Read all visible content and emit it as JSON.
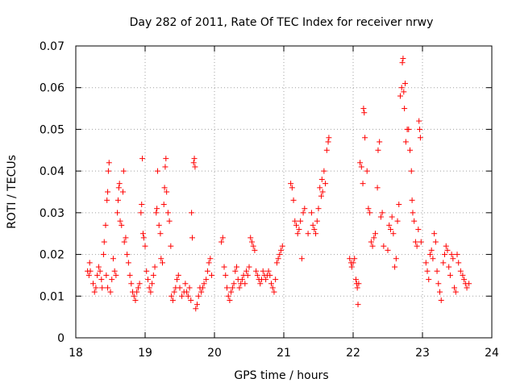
{
  "chart_data": {
    "type": "scatter",
    "title": "Day 282 of 2011, Rate Of TEC Index for receiver nrwy",
    "xlabel": "GPS time / hours",
    "ylabel": "ROTI / TECUs",
    "xlim": [
      18,
      24
    ],
    "ylim": [
      0,
      0.07
    ],
    "xticks": [
      18,
      19,
      20,
      21,
      22,
      23,
      24
    ],
    "xtick_labels": [
      "18",
      "19",
      "20",
      "21",
      "22",
      "23",
      "24"
    ],
    "yticks": [
      0,
      0.01,
      0.02,
      0.03,
      0.04,
      0.05,
      0.06,
      0.07
    ],
    "ytick_labels": [
      "0",
      "0.01",
      "0.02",
      "0.03",
      "0.04",
      "0.05",
      "0.06",
      "0.07"
    ],
    "grid": true,
    "marker": "+",
    "color": "#ff0000",
    "series": [
      {
        "name": "nrwy",
        "points": [
          [
            18.17,
            0.016
          ],
          [
            18.19,
            0.015
          ],
          [
            18.21,
            0.016
          ],
          [
            18.2,
            0.018
          ],
          [
            18.25,
            0.013
          ],
          [
            18.27,
            0.011
          ],
          [
            18.29,
            0.012
          ],
          [
            18.31,
            0.015
          ],
          [
            18.33,
            0.017
          ],
          [
            18.35,
            0.016
          ],
          [
            18.37,
            0.014
          ],
          [
            18.38,
            0.012
          ],
          [
            18.4,
            0.02
          ],
          [
            18.41,
            0.023
          ],
          [
            18.43,
            0.027
          ],
          [
            18.45,
            0.033
          ],
          [
            18.46,
            0.035
          ],
          [
            18.47,
            0.04
          ],
          [
            18.48,
            0.042
          ],
          [
            18.44,
            0.015
          ],
          [
            18.46,
            0.012
          ],
          [
            18.5,
            0.011
          ],
          [
            18.52,
            0.014
          ],
          [
            18.54,
            0.019
          ],
          [
            18.56,
            0.016
          ],
          [
            18.58,
            0.015
          ],
          [
            18.6,
            0.03
          ],
          [
            18.61,
            0.033
          ],
          [
            18.62,
            0.036
          ],
          [
            18.63,
            0.037
          ],
          [
            18.64,
            0.028
          ],
          [
            18.66,
            0.027
          ],
          [
            18.68,
            0.035
          ],
          [
            18.69,
            0.04
          ],
          [
            18.7,
            0.023
          ],
          [
            18.72,
            0.024
          ],
          [
            18.74,
            0.02
          ],
          [
            18.76,
            0.018
          ],
          [
            18.78,
            0.015
          ],
          [
            18.8,
            0.013
          ],
          [
            18.82,
            0.011
          ],
          [
            18.84,
            0.01
          ],
          [
            18.86,
            0.009
          ],
          [
            18.88,
            0.011
          ],
          [
            18.9,
            0.012
          ],
          [
            18.92,
            0.013
          ],
          [
            18.94,
            0.03
          ],
          [
            18.95,
            0.032
          ],
          [
            18.96,
            0.043
          ],
          [
            18.97,
            0.025
          ],
          [
            18.98,
            0.024
          ],
          [
            19.0,
            0.022
          ],
          [
            19.02,
            0.016
          ],
          [
            19.04,
            0.014
          ],
          [
            19.06,
            0.012
          ],
          [
            19.08,
            0.011
          ],
          [
            19.1,
            0.013
          ],
          [
            19.12,
            0.015
          ],
          [
            19.14,
            0.017
          ],
          [
            19.16,
            0.03
          ],
          [
            19.17,
            0.031
          ],
          [
            19.18,
            0.04
          ],
          [
            19.2,
            0.027
          ],
          [
            19.22,
            0.025
          ],
          [
            19.23,
            0.019
          ],
          [
            19.25,
            0.018
          ],
          [
            19.27,
            0.032
          ],
          [
            19.28,
            0.036
          ],
          [
            19.29,
            0.041
          ],
          [
            19.3,
            0.043
          ],
          [
            19.31,
            0.035
          ],
          [
            19.33,
            0.03
          ],
          [
            19.35,
            0.028
          ],
          [
            19.37,
            0.022
          ],
          [
            19.38,
            0.01
          ],
          [
            19.4,
            0.009
          ],
          [
            19.42,
            0.011
          ],
          [
            19.44,
            0.012
          ],
          [
            19.46,
            0.014
          ],
          [
            19.48,
            0.015
          ],
          [
            19.5,
            0.012
          ],
          [
            19.53,
            0.01
          ],
          [
            19.56,
            0.011
          ],
          [
            19.58,
            0.013
          ],
          [
            19.6,
            0.011
          ],
          [
            19.62,
            0.01
          ],
          [
            19.64,
            0.012
          ],
          [
            19.66,
            0.009
          ],
          [
            19.67,
            0.03
          ],
          [
            19.68,
            0.024
          ],
          [
            19.7,
            0.042
          ],
          [
            19.71,
            0.043
          ],
          [
            19.72,
            0.041
          ],
          [
            19.73,
            0.007
          ],
          [
            19.75,
            0.008
          ],
          [
            19.77,
            0.01
          ],
          [
            19.79,
            0.012
          ],
          [
            19.81,
            0.011
          ],
          [
            19.83,
            0.012
          ],
          [
            19.85,
            0.013
          ],
          [
            19.88,
            0.014
          ],
          [
            19.9,
            0.016
          ],
          [
            19.92,
            0.018
          ],
          [
            19.94,
            0.019
          ],
          [
            19.96,
            0.015
          ],
          [
            20.1,
            0.023
          ],
          [
            20.12,
            0.024
          ],
          [
            20.14,
            0.017
          ],
          [
            20.16,
            0.015
          ],
          [
            20.18,
            0.012
          ],
          [
            20.2,
            0.01
          ],
          [
            20.22,
            0.009
          ],
          [
            20.24,
            0.011
          ],
          [
            20.26,
            0.012
          ],
          [
            20.28,
            0.013
          ],
          [
            20.3,
            0.016
          ],
          [
            20.32,
            0.017
          ],
          [
            20.34,
            0.014
          ],
          [
            20.36,
            0.012
          ],
          [
            20.38,
            0.013
          ],
          [
            20.4,
            0.014
          ],
          [
            20.42,
            0.015
          ],
          [
            20.44,
            0.013
          ],
          [
            20.46,
            0.016
          ],
          [
            20.48,
            0.015
          ],
          [
            20.5,
            0.017
          ],
          [
            20.52,
            0.024
          ],
          [
            20.54,
            0.023
          ],
          [
            20.56,
            0.022
          ],
          [
            20.58,
            0.021
          ],
          [
            20.6,
            0.016
          ],
          [
            20.62,
            0.015
          ],
          [
            20.64,
            0.014
          ],
          [
            20.66,
            0.013
          ],
          [
            20.68,
            0.014
          ],
          [
            20.7,
            0.016
          ],
          [
            20.72,
            0.015
          ],
          [
            20.74,
            0.014
          ],
          [
            20.76,
            0.015
          ],
          [
            20.78,
            0.016
          ],
          [
            20.8,
            0.015
          ],
          [
            20.82,
            0.013
          ],
          [
            20.84,
            0.012
          ],
          [
            20.86,
            0.011
          ],
          [
            20.88,
            0.014
          ],
          [
            20.9,
            0.018
          ],
          [
            20.92,
            0.019
          ],
          [
            20.94,
            0.02
          ],
          [
            20.96,
            0.021
          ],
          [
            20.98,
            0.022
          ],
          [
            21.1,
            0.037
          ],
          [
            21.12,
            0.036
          ],
          [
            21.14,
            0.033
          ],
          [
            21.16,
            0.028
          ],
          [
            21.18,
            0.027
          ],
          [
            21.2,
            0.025
          ],
          [
            21.22,
            0.026
          ],
          [
            21.24,
            0.028
          ],
          [
            21.26,
            0.019
          ],
          [
            21.28,
            0.03
          ],
          [
            21.3,
            0.031
          ],
          [
            21.35,
            0.025
          ],
          [
            21.4,
            0.03
          ],
          [
            21.42,
            0.027
          ],
          [
            21.44,
            0.026
          ],
          [
            21.46,
            0.025
          ],
          [
            21.48,
            0.028
          ],
          [
            21.5,
            0.031
          ],
          [
            21.52,
            0.036
          ],
          [
            21.54,
            0.034
          ],
          [
            21.55,
            0.038
          ],
          [
            21.56,
            0.035
          ],
          [
            21.58,
            0.04
          ],
          [
            21.6,
            0.037
          ],
          [
            21.62,
            0.045
          ],
          [
            21.64,
            0.047
          ],
          [
            21.65,
            0.048
          ],
          [
            21.95,
            0.019
          ],
          [
            21.97,
            0.018
          ],
          [
            21.98,
            0.017
          ],
          [
            22.0,
            0.018
          ],
          [
            22.02,
            0.019
          ],
          [
            22.04,
            0.014
          ],
          [
            22.05,
            0.013
          ],
          [
            22.06,
            0.012
          ],
          [
            22.07,
            0.008
          ],
          [
            22.08,
            0.013
          ],
          [
            22.1,
            0.042
          ],
          [
            22.12,
            0.041
          ],
          [
            22.14,
            0.037
          ],
          [
            22.15,
            0.055
          ],
          [
            22.16,
            0.054
          ],
          [
            22.17,
            0.048
          ],
          [
            22.2,
            0.04
          ],
          [
            22.22,
            0.031
          ],
          [
            22.24,
            0.03
          ],
          [
            22.26,
            0.023
          ],
          [
            22.28,
            0.022
          ],
          [
            22.3,
            0.024
          ],
          [
            22.32,
            0.025
          ],
          [
            22.35,
            0.036
          ],
          [
            22.36,
            0.045
          ],
          [
            22.38,
            0.047
          ],
          [
            22.4,
            0.029
          ],
          [
            22.42,
            0.03
          ],
          [
            22.44,
            0.022
          ],
          [
            22.5,
            0.021
          ],
          [
            22.52,
            0.027
          ],
          [
            22.54,
            0.026
          ],
          [
            22.56,
            0.029
          ],
          [
            22.58,
            0.025
          ],
          [
            22.6,
            0.017
          ],
          [
            22.62,
            0.019
          ],
          [
            22.64,
            0.028
          ],
          [
            22.66,
            0.032
          ],
          [
            22.68,
            0.058
          ],
          [
            22.7,
            0.06
          ],
          [
            22.71,
            0.066
          ],
          [
            22.72,
            0.067
          ],
          [
            22.73,
            0.059
          ],
          [
            22.74,
            0.055
          ],
          [
            22.75,
            0.061
          ],
          [
            22.76,
            0.047
          ],
          [
            22.78,
            0.05
          ],
          [
            22.8,
            0.05
          ],
          [
            22.82,
            0.045
          ],
          [
            22.84,
            0.04
          ],
          [
            22.85,
            0.033
          ],
          [
            22.86,
            0.03
          ],
          [
            22.88,
            0.028
          ],
          [
            22.9,
            0.023
          ],
          [
            22.92,
            0.022
          ],
          [
            22.94,
            0.026
          ],
          [
            22.95,
            0.052
          ],
          [
            22.96,
            0.05
          ],
          [
            22.97,
            0.048
          ],
          [
            22.98,
            0.023
          ],
          [
            23.05,
            0.018
          ],
          [
            23.07,
            0.016
          ],
          [
            23.09,
            0.014
          ],
          [
            23.11,
            0.02
          ],
          [
            23.13,
            0.021
          ],
          [
            23.15,
            0.019
          ],
          [
            23.17,
            0.025
          ],
          [
            23.19,
            0.023
          ],
          [
            23.21,
            0.016
          ],
          [
            23.23,
            0.013
          ],
          [
            23.25,
            0.011
          ],
          [
            23.27,
            0.009
          ],
          [
            23.3,
            0.018
          ],
          [
            23.32,
            0.02
          ],
          [
            23.34,
            0.022
          ],
          [
            23.36,
            0.021
          ],
          [
            23.38,
            0.017
          ],
          [
            23.4,
            0.015
          ],
          [
            23.42,
            0.02
          ],
          [
            23.44,
            0.019
          ],
          [
            23.46,
            0.012
          ],
          [
            23.48,
            0.011
          ],
          [
            23.5,
            0.02
          ],
          [
            23.52,
            0.018
          ],
          [
            23.55,
            0.016
          ],
          [
            23.58,
            0.015
          ],
          [
            23.6,
            0.014
          ],
          [
            23.62,
            0.013
          ],
          [
            23.64,
            0.012
          ],
          [
            23.67,
            0.013
          ]
        ]
      }
    ]
  }
}
